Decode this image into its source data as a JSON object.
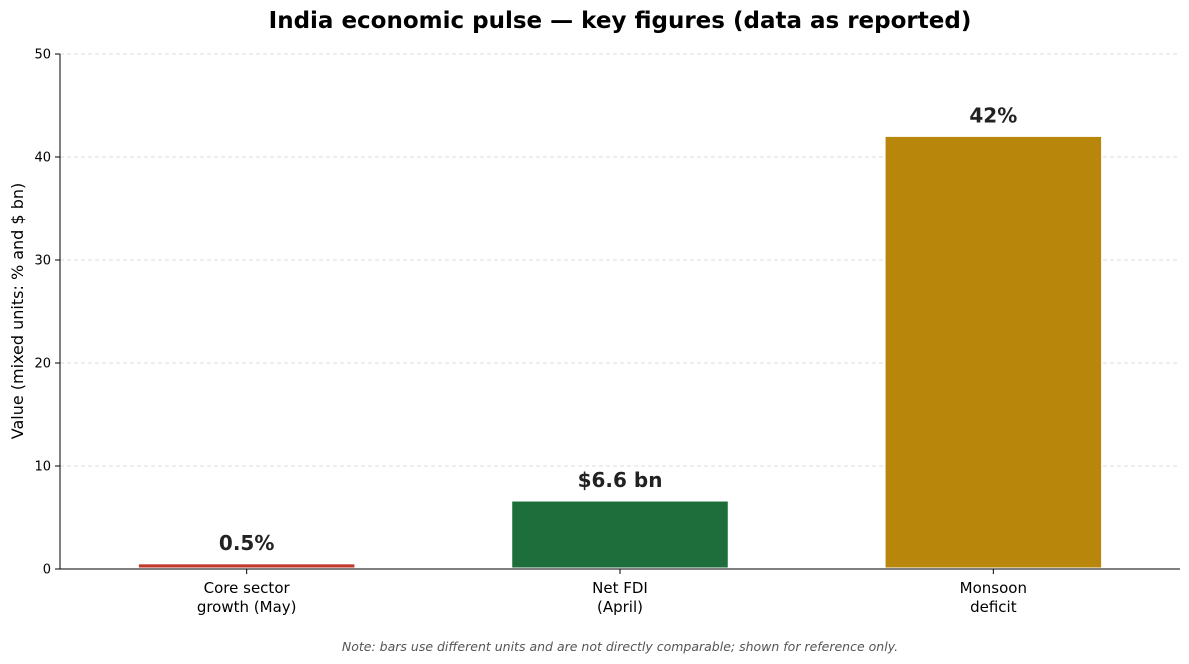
{
  "chart_data": {
    "type": "bar",
    "title": "India economic pulse — key figures (data as reported)",
    "ylabel": "Value (mixed units: % and $ bn)",
    "xlabel": "",
    "ylim": [
      0,
      50
    ],
    "yticks": [
      0,
      10,
      20,
      30,
      40,
      50
    ],
    "grid": "horizontal-dashed",
    "categories": [
      [
        "Core sector",
        "growth (May)"
      ],
      [
        "Net FDI",
        "(April)"
      ],
      [
        "Monsoon",
        "deficit"
      ]
    ],
    "values": [
      0.5,
      6.6,
      42
    ],
    "data_labels": [
      "0.5%",
      "$6.6 bn",
      "42%"
    ],
    "colors": [
      "#c0392b",
      "#1e6e3c",
      "#b8860b"
    ],
    "note": "Note: bars use different units and are not directly comparable; shown for reference only."
  }
}
